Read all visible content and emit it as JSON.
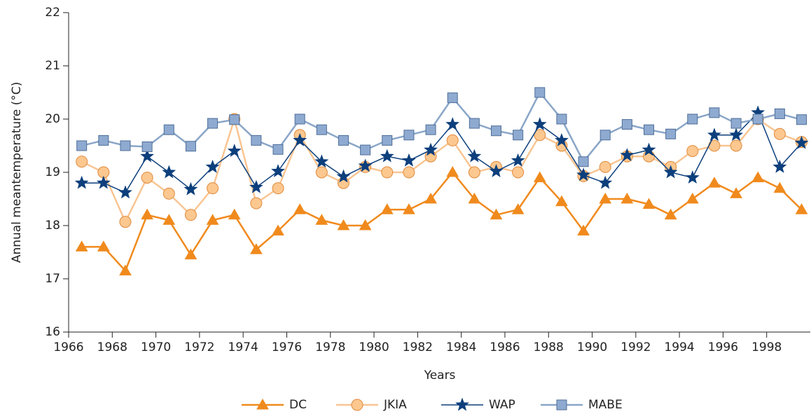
{
  "chart_data": {
    "type": "line",
    "x_label": "Years",
    "y_label": "Annual meantemperature (°C)",
    "x": [
      1966.6,
      1967.6,
      1968.6,
      1969.6,
      1970.6,
      1971.6,
      1972.6,
      1973.6,
      1974.6,
      1975.6,
      1976.6,
      1977.6,
      1978.6,
      1979.6,
      1980.6,
      1981.6,
      1982.6,
      1983.6,
      1984.6,
      1985.6,
      1986.6,
      1987.6,
      1988.6,
      1989.6,
      1990.6,
      1991.6,
      1992.6,
      1993.6,
      1994.6,
      1995.6,
      1996.6,
      1997.6,
      1998.6,
      1999.6
    ],
    "xlim": [
      1966,
      2000
    ],
    "xticks": [
      1966,
      1968,
      1970,
      1972,
      1974,
      1976,
      1978,
      1980,
      1982,
      1984,
      1986,
      1988,
      1990,
      1992,
      1994,
      1996,
      1998
    ],
    "ylim": [
      16,
      22
    ],
    "yticks": [
      16,
      17,
      18,
      19,
      20,
      21,
      22
    ],
    "series": [
      {
        "name": "DC",
        "color": "#f08a1d",
        "marker": "triangle",
        "values": [
          17.6,
          17.6,
          17.15,
          18.2,
          18.1,
          17.45,
          18.1,
          18.2,
          17.55,
          17.9,
          18.3,
          18.1,
          18.0,
          18.0,
          18.3,
          18.3,
          18.5,
          19.0,
          18.5,
          18.2,
          18.3,
          18.9,
          18.45,
          17.9,
          18.5,
          18.5,
          18.4,
          18.2,
          18.5,
          18.8,
          18.6,
          18.9,
          18.7,
          18.3
        ]
      },
      {
        "name": "JKIA",
        "color": "#f9c592",
        "marker": "circle",
        "values": [
          19.2,
          19.0,
          18.07,
          18.9,
          18.6,
          18.2,
          18.7,
          20.0,
          18.42,
          18.7,
          19.7,
          19.0,
          18.8,
          19.1,
          19.0,
          19.0,
          19.3,
          19.6,
          19.0,
          19.1,
          19.0,
          19.7,
          19.5,
          18.93,
          19.1,
          19.3,
          19.3,
          19.1,
          19.4,
          19.5,
          19.5,
          20.0,
          19.72,
          19.57
        ]
      },
      {
        "name": "WAP",
        "color": "#0c3f7c",
        "marker": "star",
        "values": [
          18.8,
          18.8,
          18.62,
          19.3,
          19.0,
          18.68,
          19.1,
          19.4,
          18.72,
          19.02,
          19.6,
          19.2,
          18.92,
          19.12,
          19.3,
          19.22,
          19.42,
          19.9,
          19.3,
          19.02,
          19.22,
          19.9,
          19.6,
          18.95,
          18.8,
          19.32,
          19.42,
          19.0,
          18.9,
          19.7,
          19.7,
          20.12,
          19.1,
          19.55
        ]
      },
      {
        "name": "MABE",
        "color": "#8aa6c8",
        "marker": "square",
        "values": [
          19.5,
          19.6,
          19.5,
          19.48,
          19.8,
          19.49,
          19.92,
          19.99,
          19.6,
          19.43,
          20.0,
          19.8,
          19.6,
          19.42,
          19.6,
          19.7,
          19.8,
          20.4,
          19.92,
          19.78,
          19.7,
          20.5,
          20.0,
          19.2,
          19.7,
          19.9,
          19.8,
          19.72,
          20.0,
          20.12,
          19.92,
          20.0,
          20.1,
          19.99
        ]
      }
    ]
  }
}
